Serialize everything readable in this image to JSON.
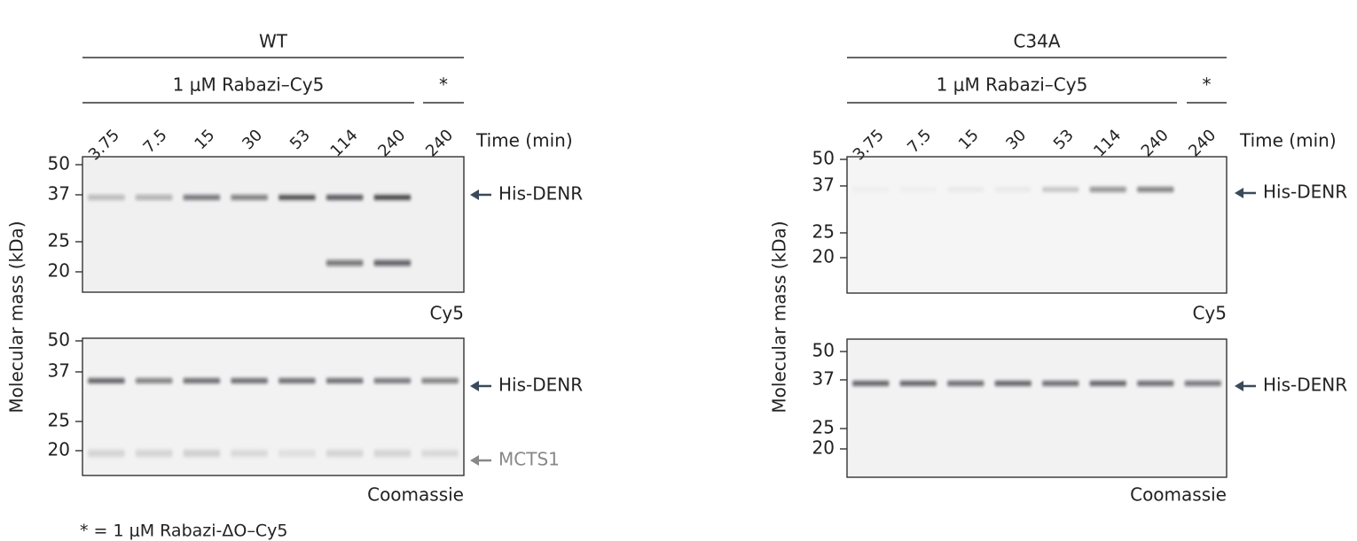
{
  "panels": [
    {
      "title": "WT",
      "treatment": "1 μM Rabazi–Cy5",
      "control": "*",
      "lanes": [
        "3.75",
        "7.5",
        "15",
        "30",
        "53",
        "114",
        "240",
        "240"
      ],
      "time_label": "Time (min)",
      "y_label": "Molecular mass (kDa)",
      "gels": [
        {
          "markers": [
            "50",
            "37",
            "25",
            "20"
          ],
          "caption": "Cy5",
          "annotations": [
            "His-DENR"
          ]
        },
        {
          "markers": [
            "50",
            "37",
            "25",
            "20"
          ],
          "caption": "Coomassie",
          "annotations": [
            "His-DENR",
            "MCTS1"
          ]
        }
      ]
    },
    {
      "title": "C34A",
      "treatment": "1 μM Rabazi–Cy5",
      "control": "*",
      "lanes": [
        "3.75",
        "7.5",
        "15",
        "30",
        "53",
        "114",
        "240",
        "240"
      ],
      "time_label": "Time (min)",
      "y_label": "Molecular mass (kDa)",
      "gels": [
        {
          "markers": [
            "50",
            "37",
            "25",
            "20"
          ],
          "caption": "Cy5",
          "annotations": [
            "His-DENR"
          ]
        },
        {
          "markers": [
            "50",
            "37",
            "25",
            "20"
          ],
          "caption": "Coomassie",
          "annotations": [
            "His-DENR"
          ]
        }
      ]
    }
  ],
  "footnote": "* = 1 μM Rabazi-ΔO–Cy5"
}
